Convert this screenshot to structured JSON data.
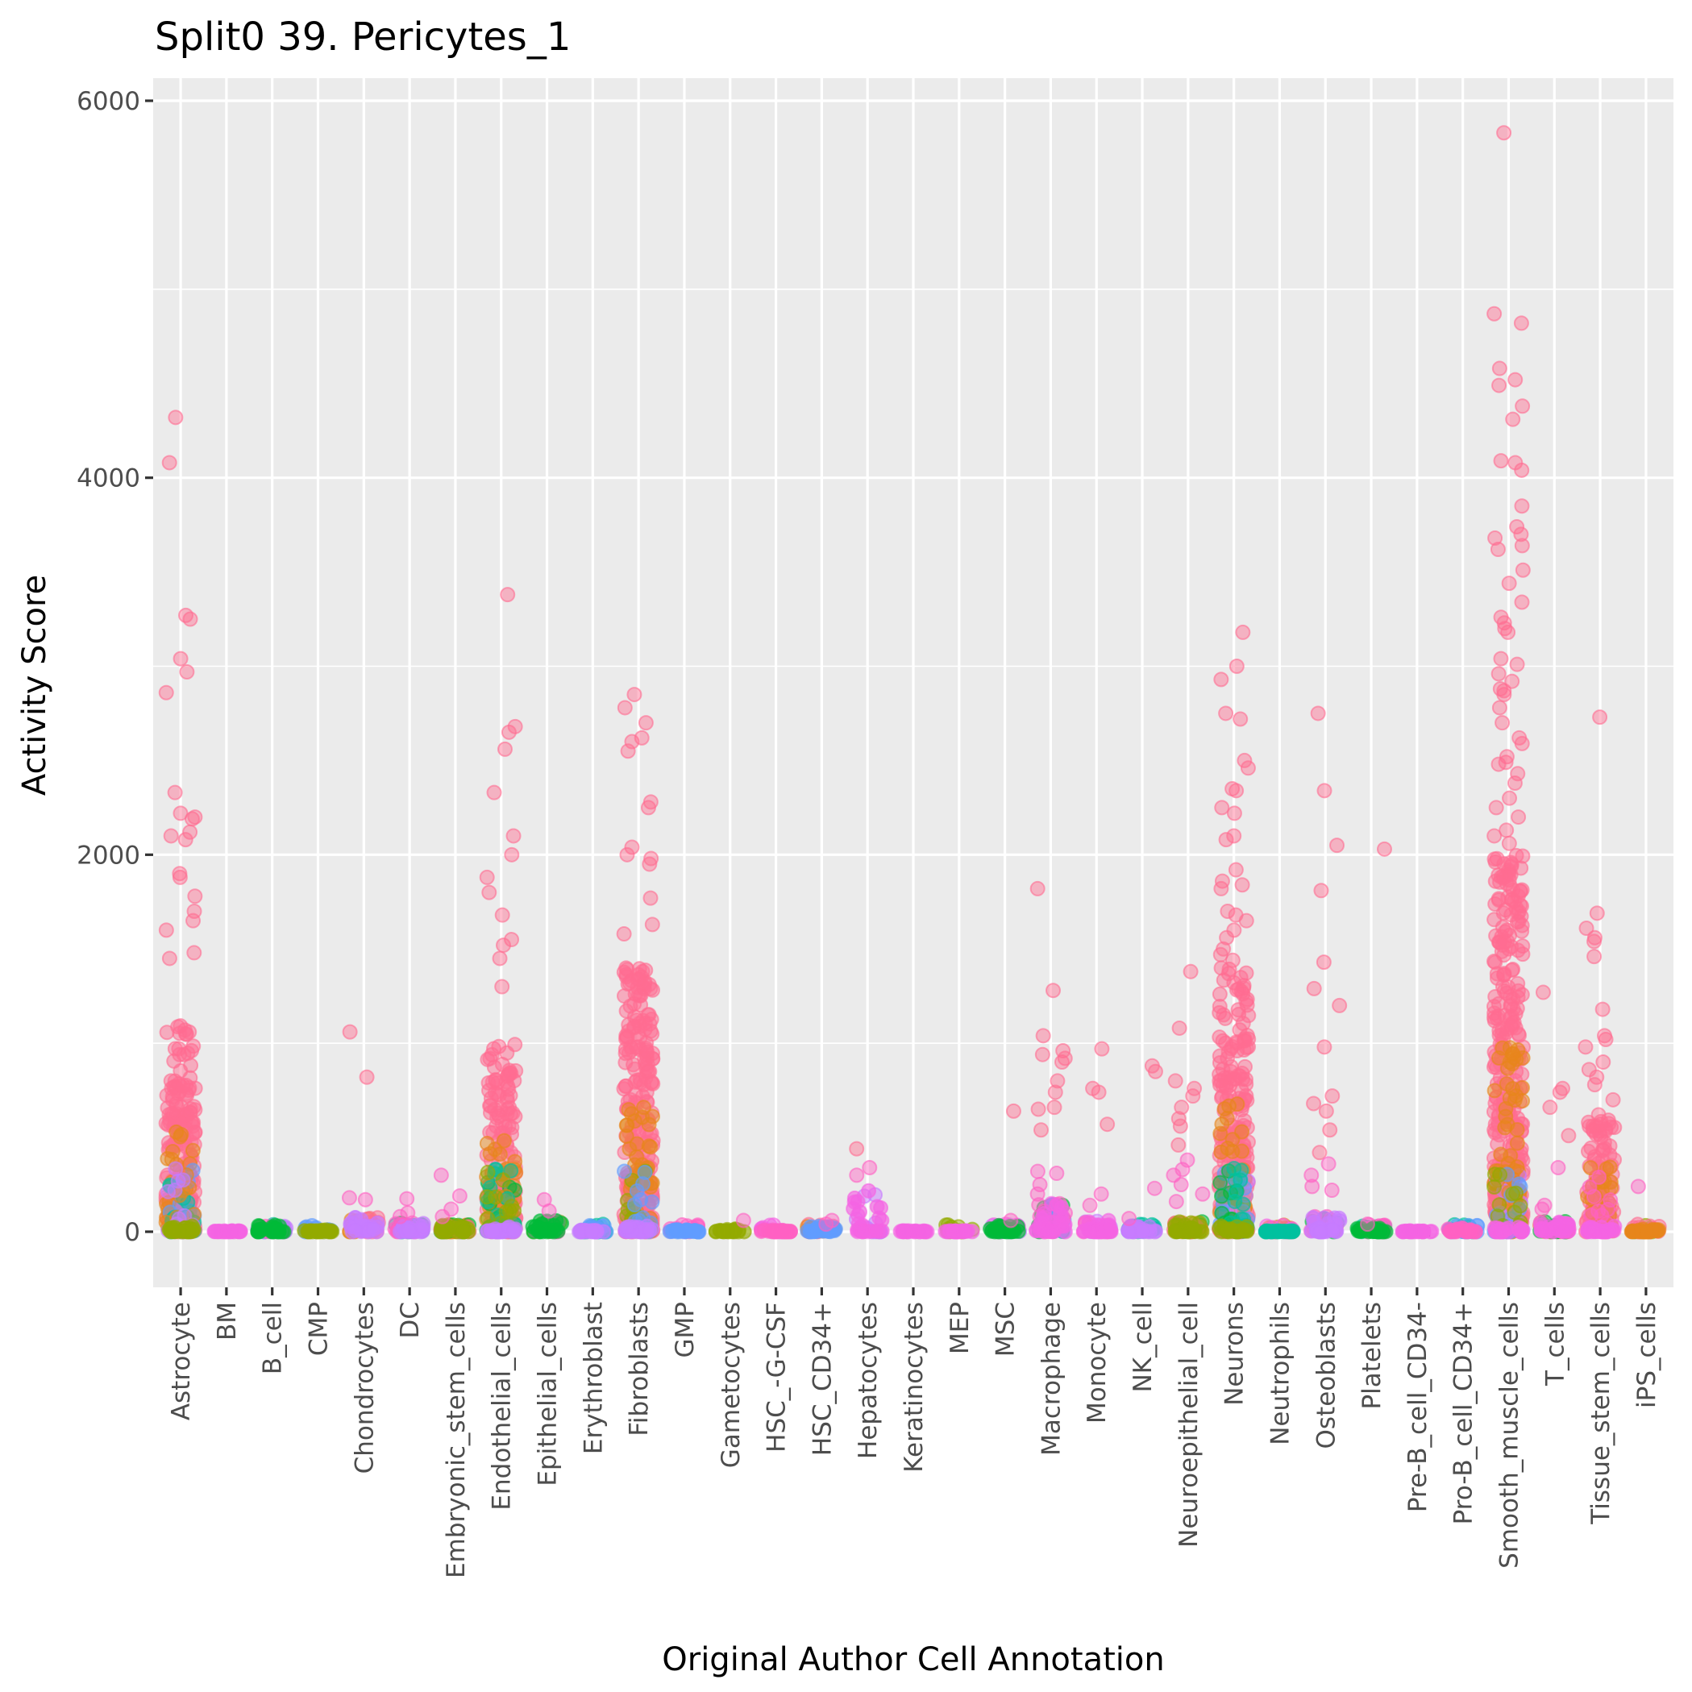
{
  "chart_data": {
    "type": "scatter",
    "subtype": "jitter-strip",
    "title": "Split0 39. Pericytes_1",
    "xlabel": "Original Author Cell Annotation",
    "ylabel": "Activity Score",
    "ylim": [
      -300,
      6150
    ],
    "yticks": [
      0,
      2000,
      4000,
      6000
    ],
    "ytick_labels": [
      "0",
      "2000",
      "4000",
      "6000"
    ],
    "grid": true,
    "legend": "none",
    "palette": {
      "main": "#F8766D",
      "pink_red": "#FF6C91",
      "orange": "#E7861B",
      "olive": "#93AA00",
      "green": "#00BA38",
      "teal": "#00C19F",
      "blue": "#619CFF",
      "purple": "#C77CFF",
      "magenta": "#F564E3",
      "pink": "#FF61C3",
      "zero_bar": "#000000"
    },
    "categories": [
      "Astrocyte",
      "BM",
      "B_cell",
      "CMP",
      "Chondrocytes",
      "DC",
      "Embryonic_stem_cells",
      "Endothelial_cells",
      "Epithelial_cells",
      "Erythroblast",
      "Fibroblasts",
      "GMP",
      "Gametocytes",
      "HSC_-G-CSF",
      "HSC_CD34+",
      "Hepatocytes",
      "Keratinocytes",
      "MEP",
      "MSC",
      "Macrophage",
      "Monocyte",
      "NK_cell",
      "Neuroepithelial_cell",
      "Neurons",
      "Neutrophils",
      "Osteoblasts",
      "Platelets",
      "Pre-B_cell_CD34-",
      "Pro-B_cell_CD34+",
      "Smooth_muscle_cells",
      "T_cells",
      "Tissue_stem_cells",
      "iPS_cells"
    ],
    "series": [
      {
        "name": "Astrocyte",
        "dense_top": 1100,
        "base_color": "olive",
        "low_colors": [
          "blue",
          "teal",
          "orange",
          "purple"
        ],
        "outliers": [
          4320,
          4080,
          3270,
          3250,
          3040,
          2970,
          2860,
          2330,
          2220,
          2200,
          2190,
          2120,
          2100,
          2080,
          1900,
          1880,
          1780,
          1700,
          1650,
          1600,
          1480,
          1450
        ]
      },
      {
        "name": "BM",
        "dense_top": 0,
        "base_color": "magenta",
        "low_colors": [],
        "outliers": [],
        "zero_bar": true
      },
      {
        "name": "B_cell",
        "dense_top": 40,
        "base_color": "green",
        "low_colors": [
          "teal",
          "purple",
          "pink"
        ],
        "outliers": []
      },
      {
        "name": "CMP",
        "dense_top": 10,
        "base_color": "olive",
        "low_colors": [
          "blue"
        ],
        "outliers": [],
        "zero_bar": true
      },
      {
        "name": "Chondrocytes",
        "dense_top": 80,
        "base_color": "purple",
        "low_colors": [
          "orange",
          "pink_red"
        ],
        "outliers": [
          1060,
          820,
          180,
          170
        ]
      },
      {
        "name": "DC",
        "dense_top": 50,
        "base_color": "purple",
        "low_colors": [
          "green",
          "teal",
          "pink"
        ],
        "outliers": [
          175,
          100,
          80
        ]
      },
      {
        "name": "Embryonic_stem_cells",
        "dense_top": 40,
        "base_color": "olive",
        "low_colors": [
          "orange",
          "green",
          "pink_red"
        ],
        "outliers": [
          300,
          190,
          120,
          80
        ]
      },
      {
        "name": "Endothelial_cells",
        "dense_top": 1000,
        "base_color": "purple",
        "low_colors": [
          "green",
          "orange",
          "teal",
          "olive"
        ],
        "outliers": [
          3380,
          2680,
          2650,
          2560,
          2330,
          2100,
          2000,
          1880,
          1800,
          1680,
          1550,
          1520,
          1450,
          1300
        ]
      },
      {
        "name": "Epithelial_cells",
        "dense_top": 60,
        "base_color": "green",
        "low_colors": [
          "olive",
          "pink"
        ],
        "outliers": [
          170,
          110
        ]
      },
      {
        "name": "Erythroblast",
        "dense_top": 10,
        "base_color": "purple",
        "low_colors": [
          "teal",
          "blue"
        ],
        "outliers": [],
        "zero_bar": true
      },
      {
        "name": "Fibroblasts",
        "dense_top": 1400,
        "base_color": "purple",
        "low_colors": [
          "orange",
          "olive",
          "blue"
        ],
        "outliers": [
          2850,
          2780,
          2700,
          2620,
          2600,
          2550,
          2280,
          2250,
          2040,
          2000,
          1980,
          1950,
          1770,
          1630,
          1580
        ]
      },
      {
        "name": "GMP",
        "dense_top": 10,
        "base_color": "blue",
        "low_colors": [
          "pink"
        ],
        "outliers": [],
        "zero_bar": true
      },
      {
        "name": "Gametocytes",
        "dense_top": 15,
        "base_color": "olive",
        "low_colors": [],
        "outliers": [
          60
        ]
      },
      {
        "name": "HSC_-G-CSF",
        "dense_top": 10,
        "base_color": "pink",
        "low_colors": [
          "magenta"
        ],
        "outliers": [],
        "zero_bar": true
      },
      {
        "name": "HSC_CD34+",
        "dense_top": 30,
        "base_color": "blue",
        "low_colors": [
          "pink_red",
          "orange"
        ],
        "outliers": [
          60,
          40
        ]
      },
      {
        "name": "Hepatocytes",
        "dense_top": 230,
        "base_color": "magenta",
        "low_colors": [
          "purple"
        ],
        "outliers": [
          440,
          340,
          300
        ]
      },
      {
        "name": "Keratinocytes",
        "dense_top": 0,
        "base_color": "magenta",
        "low_colors": [],
        "outliers": [],
        "zero_bar": true
      },
      {
        "name": "MEP",
        "dense_top": 0,
        "base_color": "magenta",
        "low_colors": [
          "olive"
        ],
        "outliers": [],
        "zero_bar": true
      },
      {
        "name": "MSC",
        "dense_top": 40,
        "base_color": "green",
        "low_colors": [
          "purple",
          "magenta"
        ],
        "outliers": [
          640,
          60
        ]
      },
      {
        "name": "Macrophage",
        "dense_top": 150,
        "base_color": "magenta",
        "low_colors": [
          "green",
          "blue",
          "pink"
        ],
        "outliers": [
          1820,
          1280,
          1040,
          960,
          940,
          920,
          900,
          800,
          740,
          660,
          650,
          540,
          320,
          310,
          250,
          200
        ]
      },
      {
        "name": "Monocyte",
        "dense_top": 60,
        "base_color": "magenta",
        "low_colors": [
          "purple",
          "pink"
        ],
        "outliers": [
          970,
          760,
          740,
          570,
          200,
          140
        ]
      },
      {
        "name": "NK_cell",
        "dense_top": 30,
        "base_color": "purple",
        "low_colors": [
          "blue",
          "teal"
        ],
        "outliers": [
          880,
          850,
          230,
          70
        ]
      },
      {
        "name": "Neuroepithelial_cell",
        "dense_top": 60,
        "base_color": "olive",
        "low_colors": [
          "green",
          "orange",
          "pink_red"
        ],
        "outliers": [
          1380,
          1080,
          800,
          760,
          720,
          660,
          600,
          560,
          460,
          380,
          330,
          300,
          250,
          200,
          160
        ]
      },
      {
        "name": "Neurons",
        "dense_top": 1400,
        "base_color": "olive",
        "low_colors": [
          "purple",
          "blue",
          "green",
          "teal"
        ],
        "outliers": [
          3180,
          3000,
          2930,
          2750,
          2720,
          2500,
          2460,
          2350,
          2340,
          2250,
          2220,
          2100,
          2080,
          1920,
          1860,
          1840,
          1820,
          1700,
          1680,
          1650,
          1600,
          1560,
          1500,
          1470,
          1440
        ]
      },
      {
        "name": "Neutrophils",
        "dense_top": 5,
        "base_color": "teal",
        "low_colors": [
          "orange",
          "magenta"
        ],
        "outliers": [],
        "zero_bar": true
      },
      {
        "name": "Osteoblasts",
        "dense_top": 80,
        "base_color": "purple",
        "low_colors": [
          "green",
          "pink"
        ],
        "outliers": [
          2750,
          2340,
          2050,
          1810,
          1430,
          1290,
          1200,
          980,
          720,
          680,
          640,
          540,
          420,
          360,
          300,
          240,
          220
        ]
      },
      {
        "name": "Platelets",
        "dense_top": 20,
        "base_color": "green",
        "low_colors": [
          "teal",
          "pink"
        ],
        "outliers": [
          2030,
          40
        ]
      },
      {
        "name": "Pre-B_cell_CD34-",
        "dense_top": 0,
        "base_color": "magenta",
        "low_colors": [],
        "outliers": [],
        "zero_bar": true
      },
      {
        "name": "Pro-B_cell_CD34+",
        "dense_top": 20,
        "base_color": "pink",
        "low_colors": [
          "teal",
          "blue"
        ],
        "outliers": []
      },
      {
        "name": "Smooth_muscle_cells",
        "dense_top": 2000,
        "base_color": "magenta",
        "low_colors": [
          "purple",
          "orange",
          "blue",
          "olive"
        ],
        "outliers": [
          5830,
          4870,
          4820,
          4580,
          4520,
          4490,
          4380,
          4310,
          4090,
          4080,
          4040,
          3850,
          3740,
          3700,
          3680,
          3640,
          3620,
          3510,
          3440,
          3340,
          3260,
          3230,
          3200,
          3180,
          3040,
          3010,
          2960,
          2920,
          2880,
          2870,
          2850,
          2780,
          2700,
          2620,
          2590,
          2520,
          2490,
          2480,
          2430,
          2380,
          2300,
          2250,
          2200,
          2130,
          2100,
          2060
        ]
      },
      {
        "name": "T_cells",
        "dense_top": 60,
        "base_color": "magenta",
        "low_colors": [
          "orange",
          "green",
          "pink"
        ],
        "outliers": [
          1270,
          760,
          740,
          660,
          510,
          340,
          140,
          120
        ]
      },
      {
        "name": "Tissue_stem_cells",
        "dense_top": 600,
        "base_color": "magenta",
        "low_colors": [
          "orange",
          "pink"
        ],
        "outliers": [
          2730,
          1690,
          1610,
          1560,
          1540,
          1460,
          1180,
          1040,
          1020,
          980,
          900,
          860,
          820,
          780,
          700,
          620,
          560
        ]
      },
      {
        "name": "iPS_cells",
        "dense_top": 20,
        "base_color": "orange",
        "low_colors": [
          "olive",
          "pink_red"
        ],
        "outliers": [
          240
        ]
      }
    ]
  }
}
